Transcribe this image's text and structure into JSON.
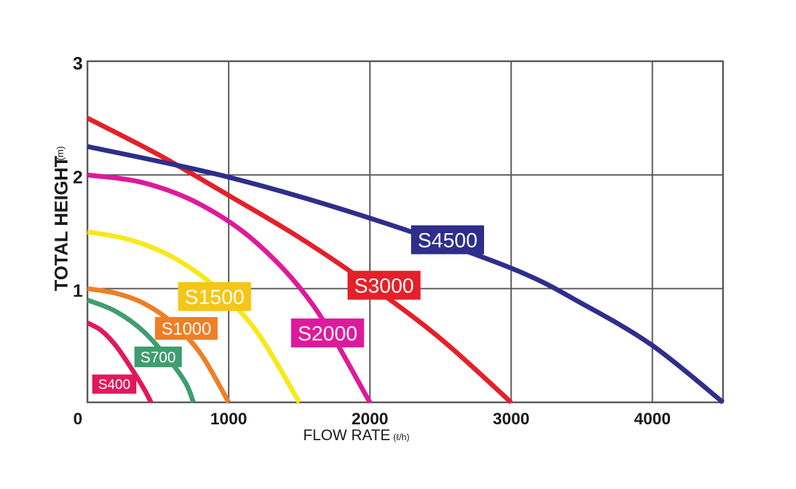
{
  "chart_data": {
    "type": "line",
    "title": "",
    "xlabel": "FLOW RATE",
    "xlabel_unit": "(ℓ/h)",
    "ylabel": "TOTAL HEIGHT",
    "ylabel_unit": "(m)",
    "xlim": [
      0,
      4500
    ],
    "ylim": [
      0,
      3
    ],
    "x_ticks": [
      {
        "value": 0,
        "label": "0"
      },
      {
        "value": 1000,
        "label": "1000"
      },
      {
        "value": 2000,
        "label": "2000"
      },
      {
        "value": 3000,
        "label": "3000"
      },
      {
        "value": 4000,
        "label": "4000"
      }
    ],
    "y_ticks": [
      {
        "value": 1,
        "label": "1"
      },
      {
        "value": 2,
        "label": "2"
      },
      {
        "value": 3,
        "label": "3"
      }
    ],
    "grid": true,
    "series": [
      {
        "name": "S400",
        "color": "#e0195d",
        "label_color": "#e0195d",
        "label_at": [
          190,
          0.16
        ],
        "x": [
          0,
          100,
          200,
          300,
          400,
          450
        ],
        "y": [
          0.7,
          0.63,
          0.5,
          0.32,
          0.12,
          0
        ]
      },
      {
        "name": "S700",
        "color": "#3f9d6f",
        "label_color": "#3f9d6f",
        "label_at": [
          500,
          0.4
        ],
        "x": [
          0,
          200,
          400,
          600,
          700,
          750
        ],
        "y": [
          0.9,
          0.8,
          0.62,
          0.34,
          0.16,
          0
        ]
      },
      {
        "name": "S1000",
        "color": "#ee7f25",
        "label_color": "#ee7f25",
        "label_at": [
          700,
          0.65
        ],
        "x": [
          0,
          200,
          400,
          600,
          800,
          1000
        ],
        "y": [
          1.0,
          0.96,
          0.87,
          0.7,
          0.43,
          0
        ]
      },
      {
        "name": "S1500",
        "color": "#f8e81c",
        "label_color": "#f4c618",
        "label_at": [
          900,
          0.93
        ],
        "x": [
          0,
          300,
          600,
          900,
          1200,
          1500
        ],
        "y": [
          1.5,
          1.43,
          1.28,
          1.02,
          0.62,
          0
        ]
      },
      {
        "name": "S2000",
        "color": "#dd1a9c",
        "label_color": "#dd1a9c",
        "label_at": [
          1700,
          0.61
        ],
        "x": [
          0,
          400,
          800,
          1200,
          1600,
          2000
        ],
        "y": [
          2.0,
          1.93,
          1.74,
          1.4,
          0.85,
          0
        ]
      },
      {
        "name": "S3000",
        "color": "#e4202a",
        "label_color": "#e4202a",
        "label_at": [
          2100,
          1.03
        ],
        "x": [
          0,
          500,
          1000,
          1500,
          2000,
          2500,
          3000
        ],
        "y": [
          2.5,
          2.18,
          1.82,
          1.45,
          1.03,
          0.56,
          0
        ]
      },
      {
        "name": "S4500",
        "color": "#2e2e8c",
        "label_color": "#2e2e8c",
        "label_at": [
          2550,
          1.43
        ],
        "x": [
          0,
          1000,
          2000,
          3000,
          3500,
          4000,
          4500
        ],
        "y": [
          2.25,
          1.98,
          1.62,
          1.18,
          0.87,
          0.5,
          0
        ]
      }
    ]
  }
}
